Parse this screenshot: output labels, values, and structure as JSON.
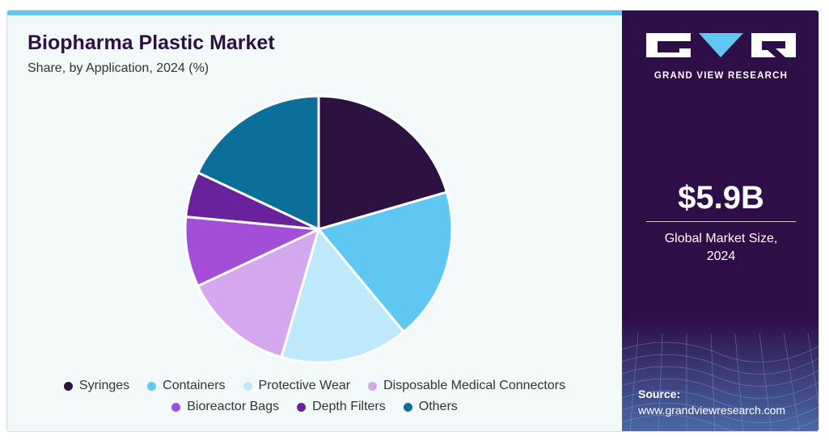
{
  "header": {
    "title": "Biopharma Plastic Market",
    "subtitle": "Share, by Application, 2024 (%)"
  },
  "chart_data": {
    "type": "pie",
    "title": "Biopharma Plastic Market",
    "subtitle": "Share, by Application, 2024 (%)",
    "categories": [
      "Syringes",
      "Containers",
      "Protective Wear",
      "Disposable Medical Connectors",
      "Bioreactor Bags",
      "Depth Filters",
      "Others"
    ],
    "values": [
      20.5,
      18.5,
      15.5,
      13.5,
      8.5,
      5.5,
      18.0
    ],
    "colors": [
      "#2b1240",
      "#5fc8f2",
      "#bde9fa",
      "#d4a8ee",
      "#a24ed8",
      "#6a219c",
      "#0b6f99"
    ],
    "legend": "bottom"
  },
  "legend": {
    "row1": [
      "Syringes",
      "Containers",
      "Protective Wear",
      "Disposable Medical Connectors"
    ],
    "row2": [
      "Bioreactor Bags",
      "Depth Filters",
      "Others"
    ]
  },
  "sidebar": {
    "brand": "GRAND VIEW RESEARCH",
    "market_value": "$5.9B",
    "market_label_line1": "Global Market Size,",
    "market_label_line2": "2024",
    "source_label": "Source:",
    "source_url": "www.grandviewresearch.com"
  },
  "colors": {
    "sidebar_bg": "#2e0e46",
    "accent": "#5fc8f2",
    "title": "#2b1240"
  }
}
